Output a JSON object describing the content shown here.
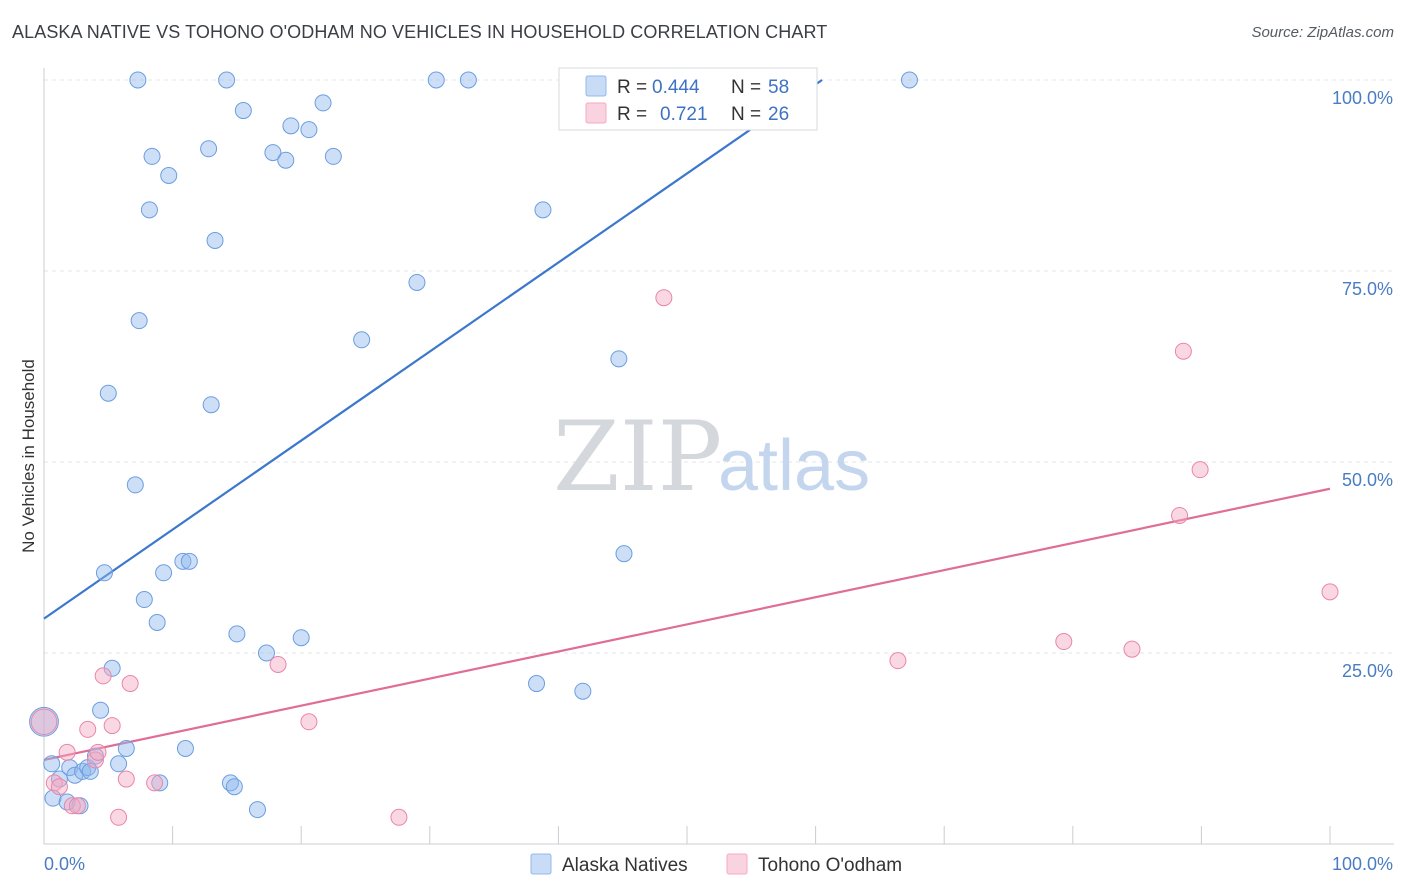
{
  "header": {
    "title": "ALASKA NATIVE VS TOHONO O'ODHAM NO VEHICLES IN HOUSEHOLD CORRELATION CHART",
    "source": "Source: ZipAtlas.com"
  },
  "watermark": {
    "zip": "ZIP",
    "atlas": "atlas"
  },
  "legend_box": {
    "rows": [
      {
        "r_label": "R = ",
        "r_value": "0.444",
        "n_label": "N = ",
        "n_value": "58",
        "color": "#8fb8ee"
      },
      {
        "r_label": "R = ",
        "r_value": "0.721",
        "n_label": "N = ",
        "n_value": "26",
        "color": "#f4a9c1"
      }
    ]
  },
  "chart_data": {
    "type": "scatter",
    "title": "ALASKA NATIVE VS TOHONO O'ODHAM NO VEHICLES IN HOUSEHOLD CORRELATION CHART",
    "xlabel": "",
    "ylabel": "No Vehicles in Household",
    "xlim": [
      0,
      100
    ],
    "ylim": [
      0,
      100
    ],
    "x_ticks": [
      "0.0%",
      "100.0%"
    ],
    "y_ticks": [
      "25.0%",
      "50.0%",
      "75.0%",
      "100.0%"
    ],
    "grid": true,
    "legend_position": "bottom",
    "series": [
      {
        "name": "Alaska Natives",
        "color": "#8fb8ee",
        "stroke": "#6b9ee0",
        "trend_color": "#3b78cc",
        "r": 0.444,
        "n": 58,
        "trend": {
          "x": [
            0,
            60.5
          ],
          "y": [
            29.5,
            100
          ]
        },
        "points": [
          [
            0.0,
            16.0,
            1.8
          ],
          [
            0.6,
            10.5,
            1
          ],
          [
            0.7,
            6.0,
            1
          ],
          [
            1.2,
            8.5,
            1
          ],
          [
            1.8,
            5.5,
            1
          ],
          [
            2.0,
            10.0,
            1
          ],
          [
            2.4,
            9.0,
            1
          ],
          [
            2.8,
            5.0,
            1
          ],
          [
            3.0,
            9.5,
            1
          ],
          [
            3.4,
            10.0,
            1
          ],
          [
            3.6,
            9.5,
            1
          ],
          [
            4.0,
            11.5,
            1
          ],
          [
            4.4,
            17.5,
            1
          ],
          [
            4.7,
            35.5,
            1
          ],
          [
            5.0,
            59.0,
            1
          ],
          [
            5.3,
            23.0,
            1
          ],
          [
            5.8,
            10.5,
            1
          ],
          [
            6.4,
            12.5,
            1
          ],
          [
            7.1,
            47.0,
            1
          ],
          [
            7.3,
            100.0,
            1
          ],
          [
            7.4,
            68.5,
            1
          ],
          [
            7.8,
            32.0,
            1
          ],
          [
            8.2,
            83.0,
            1
          ],
          [
            8.4,
            90.0,
            1
          ],
          [
            8.8,
            29.0,
            1
          ],
          [
            9.0,
            8.0,
            1
          ],
          [
            9.3,
            35.5,
            1
          ],
          [
            9.7,
            87.5,
            1
          ],
          [
            10.8,
            37.0,
            1
          ],
          [
            11.0,
            12.5,
            1
          ],
          [
            11.3,
            37.0,
            1
          ],
          [
            12.8,
            91.0,
            1
          ],
          [
            13.0,
            57.5,
            1
          ],
          [
            13.3,
            79.0,
            1
          ],
          [
            14.2,
            100.0,
            1
          ],
          [
            14.5,
            8.0,
            1
          ],
          [
            14.8,
            7.5,
            1
          ],
          [
            15.0,
            27.5,
            1
          ],
          [
            15.5,
            96.0,
            1
          ],
          [
            16.6,
            4.5,
            1
          ],
          [
            17.3,
            25.0,
            1
          ],
          [
            17.8,
            90.5,
            1
          ],
          [
            18.8,
            89.5,
            1
          ],
          [
            19.2,
            94.0,
            1
          ],
          [
            20.0,
            27.0,
            1
          ],
          [
            20.6,
            93.5,
            1
          ],
          [
            21.7,
            97.0,
            1
          ],
          [
            22.5,
            90.0,
            1
          ],
          [
            24.7,
            66.0,
            1
          ],
          [
            29.0,
            73.5,
            1
          ],
          [
            30.5,
            100.0,
            1
          ],
          [
            33.0,
            100.0,
            1
          ],
          [
            38.3,
            21.0,
            1
          ],
          [
            38.8,
            83.0,
            1
          ],
          [
            41.9,
            20.0,
            1
          ],
          [
            44.7,
            63.5,
            1
          ],
          [
            45.1,
            38.0,
            1
          ],
          [
            67.3,
            100.0,
            1
          ]
        ]
      },
      {
        "name": "Tohono O'odham",
        "color": "#f4a9c1",
        "stroke": "#ea86a8",
        "trend_color": "#e06d97",
        "r": 0.721,
        "n": 26,
        "trend": {
          "x": [
            0,
            100
          ],
          "y": [
            11.0,
            46.5
          ]
        },
        "points": [
          [
            0.0,
            16.0,
            1.6
          ],
          [
            0.8,
            8.0,
            1
          ],
          [
            1.2,
            7.5,
            1
          ],
          [
            1.8,
            12.0,
            1
          ],
          [
            2.2,
            5.0,
            1
          ],
          [
            2.6,
            5.0,
            1
          ],
          [
            3.4,
            15.0,
            1
          ],
          [
            4.0,
            11.0,
            1
          ],
          [
            4.2,
            12.0,
            1
          ],
          [
            4.6,
            22.0,
            1
          ],
          [
            5.3,
            15.5,
            1
          ],
          [
            5.8,
            3.5,
            1
          ],
          [
            6.4,
            8.5,
            1
          ],
          [
            6.7,
            21.0,
            1
          ],
          [
            8.6,
            8.0,
            1
          ],
          [
            18.2,
            23.5,
            1
          ],
          [
            20.6,
            16.0,
            1
          ],
          [
            27.6,
            3.5,
            1
          ],
          [
            48.2,
            71.5,
            1
          ],
          [
            66.4,
            24.0,
            1
          ],
          [
            79.3,
            26.5,
            1
          ],
          [
            84.6,
            25.5,
            1
          ],
          [
            88.3,
            43.0,
            1
          ],
          [
            88.6,
            64.5,
            1
          ],
          [
            89.9,
            49.0,
            1
          ],
          [
            100.0,
            33.0,
            1
          ]
        ]
      }
    ]
  }
}
